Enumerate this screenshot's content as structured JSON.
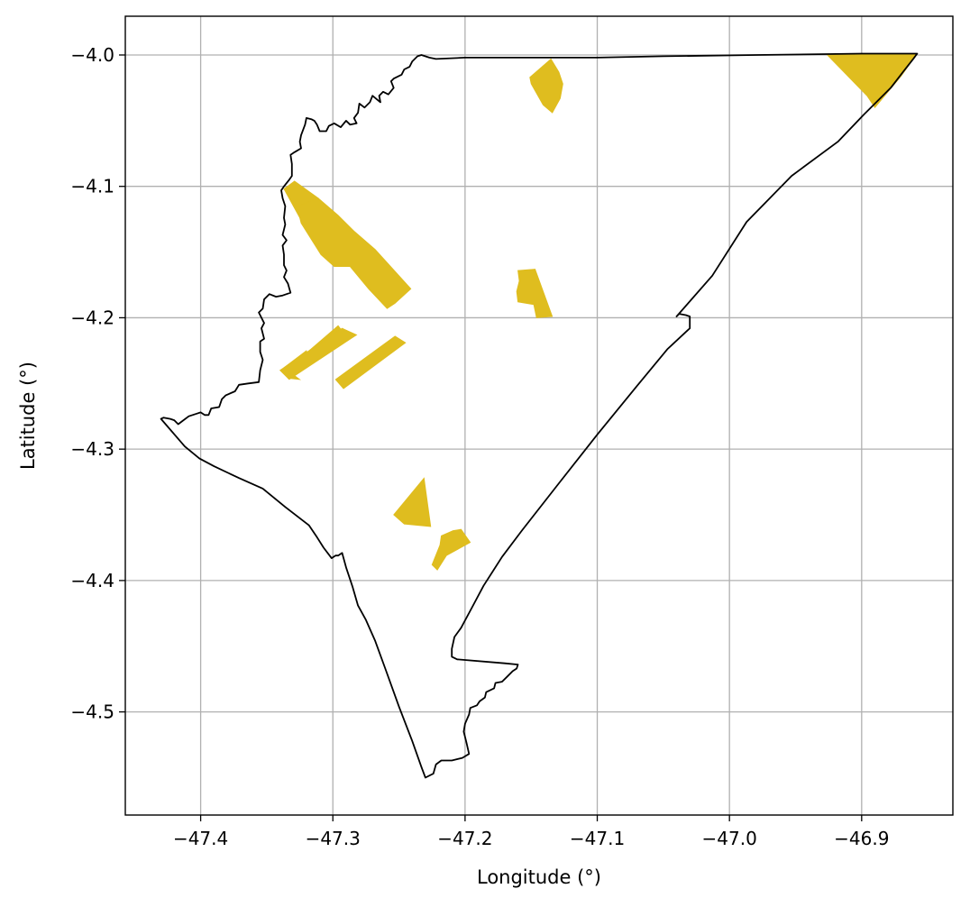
{
  "chart_data": {
    "type": "map",
    "xlabel": "Longitude (°)",
    "ylabel": "Latitude (°)",
    "xlim": [
      -47.457,
      -46.831
    ],
    "ylim": [
      -4.5785,
      -3.9705
    ],
    "grid": true,
    "xticks": [
      -47.4,
      -47.3,
      -47.2,
      -47.1,
      -47.0,
      -46.9
    ],
    "xtick_labels": [
      "−47.4",
      "−47.3",
      "−47.2",
      "−47.1",
      "−47.0",
      "−46.9"
    ],
    "yticks": [
      -4.0,
      -4.1,
      -4.2,
      -4.3,
      -4.4,
      -4.5
    ],
    "ytick_labels": [
      "−4.0",
      "−4.1",
      "−4.2",
      "−4.3",
      "−4.4",
      "−4.5"
    ],
    "boundary_color": "#000000",
    "patch_color": "#dfbd1f",
    "boundary": [
      [
        -47.227,
        -4.002
      ],
      [
        -47.233,
        -4.0
      ],
      [
        -47.236,
        -4.001
      ],
      [
        -47.24,
        -4.005
      ],
      [
        -47.242,
        -4.009
      ],
      [
        -47.246,
        -4.011
      ],
      [
        -47.248,
        -4.015
      ],
      [
        -47.254,
        -4.018
      ],
      [
        -47.256,
        -4.02
      ],
      [
        -47.254,
        -4.025
      ],
      [
        -47.258,
        -4.03
      ],
      [
        -47.262,
        -4.028
      ],
      [
        -47.265,
        -4.031
      ],
      [
        -47.264,
        -4.036
      ],
      [
        -47.27,
        -4.031
      ],
      [
        -47.272,
        -4.036
      ],
      [
        -47.276,
        -4.04
      ],
      [
        -47.28,
        -4.037
      ],
      [
        -47.281,
        -4.044
      ],
      [
        -47.284,
        -4.048
      ],
      [
        -47.282,
        -4.052
      ],
      [
        -47.287,
        -4.053
      ],
      [
        -47.29,
        -4.05
      ],
      [
        -47.294,
        -4.055
      ],
      [
        -47.299,
        -4.052
      ],
      [
        -47.303,
        -4.054
      ],
      [
        -47.305,
        -4.058
      ],
      [
        -47.31,
        -4.058
      ],
      [
        -47.312,
        -4.053
      ],
      [
        -47.314,
        -4.05
      ],
      [
        -47.316,
        -4.049
      ],
      [
        -47.32,
        -4.048
      ],
      [
        -47.321,
        -4.053
      ],
      [
        -47.324,
        -4.061
      ],
      [
        -47.325,
        -4.066
      ],
      [
        -47.324,
        -4.071
      ],
      [
        -47.329,
        -4.074
      ],
      [
        -47.332,
        -4.076
      ],
      [
        -47.331,
        -4.083
      ],
      [
        -47.331,
        -4.092
      ],
      [
        -47.333,
        -4.095
      ],
      [
        -47.337,
        -4.1
      ],
      [
        -47.339,
        -4.103
      ],
      [
        -47.338,
        -4.109
      ],
      [
        -47.336,
        -4.115
      ],
      [
        -47.337,
        -4.124
      ],
      [
        -47.336,
        -4.129
      ],
      [
        -47.338,
        -4.137
      ],
      [
        -47.335,
        -4.141
      ],
      [
        -47.338,
        -4.145
      ],
      [
        -47.337,
        -4.152
      ],
      [
        -47.337,
        -4.16
      ],
      [
        -47.335,
        -4.164
      ],
      [
        -47.337,
        -4.169
      ],
      [
        -47.334,
        -4.174
      ],
      [
        -47.332,
        -4.181
      ],
      [
        -47.338,
        -4.183
      ],
      [
        -47.343,
        -4.184
      ],
      [
        -47.348,
        -4.182
      ],
      [
        -47.352,
        -4.186
      ],
      [
        -47.353,
        -4.193
      ],
      [
        -47.356,
        -4.196
      ],
      [
        -47.352,
        -4.204
      ],
      [
        -47.354,
        -4.208
      ],
      [
        -47.352,
        -4.216
      ],
      [
        -47.355,
        -4.218
      ],
      [
        -47.355,
        -4.226
      ],
      [
        -47.353,
        -4.232
      ],
      [
        -47.355,
        -4.24
      ],
      [
        -47.356,
        -4.249
      ],
      [
        -47.364,
        -4.25
      ],
      [
        -47.371,
        -4.251
      ],
      [
        -47.374,
        -4.256
      ],
      [
        -47.381,
        -4.259
      ],
      [
        -47.384,
        -4.262
      ],
      [
        -47.386,
        -4.268
      ],
      [
        -47.392,
        -4.269
      ],
      [
        -47.394,
        -4.274
      ],
      [
        -47.397,
        -4.274
      ],
      [
        -47.4,
        -4.272
      ],
      [
        -47.403,
        -4.273
      ],
      [
        -47.409,
        -4.275
      ],
      [
        -47.413,
        -4.278
      ],
      [
        -47.417,
        -4.281
      ],
      [
        -47.42,
        -4.278
      ],
      [
        -47.423,
        -4.277
      ],
      [
        -47.428,
        -4.276
      ],
      [
        -47.43,
        -4.277
      ],
      [
        -47.412,
        -4.298
      ],
      [
        -47.401,
        -4.307
      ],
      [
        -47.39,
        -4.313
      ],
      [
        -47.371,
        -4.322
      ],
      [
        -47.353,
        -4.33
      ],
      [
        -47.336,
        -4.344
      ],
      [
        -47.318,
        -4.358
      ],
      [
        -47.312,
        -4.367
      ],
      [
        -47.307,
        -4.375
      ],
      [
        -47.301,
        -4.383
      ],
      [
        -47.298,
        -4.381
      ],
      [
        -47.296,
        -4.381
      ],
      [
        -47.293,
        -4.379
      ],
      [
        -47.29,
        -4.39
      ],
      [
        -47.285,
        -4.405
      ],
      [
        -47.281,
        -4.419
      ],
      [
        -47.275,
        -4.43
      ],
      [
        -47.268,
        -4.446
      ],
      [
        -47.26,
        -4.468
      ],
      [
        -47.25,
        -4.496
      ],
      [
        -47.24,
        -4.522
      ],
      [
        -47.233,
        -4.542
      ],
      [
        -47.23,
        -4.55
      ],
      [
        -47.224,
        -4.547
      ],
      [
        -47.222,
        -4.54
      ],
      [
        -47.218,
        -4.537
      ],
      [
        -47.21,
        -4.537
      ],
      [
        -47.202,
        -4.535
      ],
      [
        -47.197,
        -4.532
      ],
      [
        -47.199,
        -4.523
      ],
      [
        -47.201,
        -4.515
      ],
      [
        -47.2,
        -4.509
      ],
      [
        -47.197,
        -4.502
      ],
      [
        -47.196,
        -4.497
      ],
      [
        -47.191,
        -4.495
      ],
      [
        -47.189,
        -4.492
      ],
      [
        -47.185,
        -4.489
      ],
      [
        -47.184,
        -4.485
      ],
      [
        -47.178,
        -4.482
      ],
      [
        -47.177,
        -4.478
      ],
      [
        -47.172,
        -4.477
      ],
      [
        -47.168,
        -4.473
      ],
      [
        -47.164,
        -4.469
      ],
      [
        -47.161,
        -4.467
      ],
      [
        -47.16,
        -4.464
      ],
      [
        -47.17,
        -4.463
      ],
      [
        -47.206,
        -4.46
      ],
      [
        -47.21,
        -4.458
      ],
      [
        -47.21,
        -4.452
      ],
      [
        -47.208,
        -4.443
      ],
      [
        -47.203,
        -4.436
      ],
      [
        -47.195,
        -4.421
      ],
      [
        -47.186,
        -4.404
      ],
      [
        -47.172,
        -4.382
      ],
      [
        -47.157,
        -4.362
      ],
      [
        -47.129,
        -4.326
      ],
      [
        -47.1,
        -4.289
      ],
      [
        -47.07,
        -4.252
      ],
      [
        -47.047,
        -4.224
      ],
      [
        -47.03,
        -4.208
      ],
      [
        -47.03,
        -4.199
      ],
      [
        -47.033,
        -4.198
      ],
      [
        -47.038,
        -4.197
      ],
      [
        -47.04,
        -4.199
      ],
      [
        -47.013,
        -4.168
      ],
      [
        -46.987,
        -4.127
      ],
      [
        -46.953,
        -4.092
      ],
      [
        -46.918,
        -4.066
      ],
      [
        -46.898,
        -4.045
      ],
      [
        -46.878,
        -4.025
      ],
      [
        -46.868,
        -4.012
      ],
      [
        -46.861,
        -4.003
      ],
      [
        -46.858,
        -3.999
      ],
      [
        -46.9,
        -3.999
      ],
      [
        -46.98,
        -4.0
      ],
      [
        -47.05,
        -4.001
      ],
      [
        -47.1,
        -4.002
      ],
      [
        -47.15,
        -4.002
      ],
      [
        -47.2,
        -4.002
      ],
      [
        -47.222,
        -4.003
      ],
      [
        -47.227,
        -4.002
      ]
    ],
    "patches": [
      [
        [
          -47.337,
          -4.102
        ],
        [
          -47.329,
          -4.096
        ],
        [
          -47.311,
          -4.109
        ],
        [
          -47.325,
          -4.124
        ]
      ],
      [
        [
          -47.324,
          -4.114
        ],
        [
          -47.311,
          -4.109
        ],
        [
          -47.296,
          -4.122
        ],
        [
          -47.284,
          -4.134
        ],
        [
          -47.268,
          -4.148
        ],
        [
          -47.241,
          -4.178
        ],
        [
          -47.253,
          -4.189
        ],
        [
          -47.259,
          -4.193
        ],
        [
          -47.273,
          -4.178
        ],
        [
          -47.287,
          -4.161
        ],
        [
          -47.299,
          -4.161
        ],
        [
          -47.309,
          -4.152
        ],
        [
          -47.324,
          -4.128
        ],
        [
          -47.326,
          -4.12
        ]
      ],
      [
        [
          -47.16,
          -4.164
        ],
        [
          -47.147,
          -4.163
        ],
        [
          -47.134,
          -4.199
        ],
        [
          -47.146,
          -4.2
        ],
        [
          -47.148,
          -4.19
        ],
        [
          -47.16,
          -4.188
        ],
        [
          -47.161,
          -4.18
        ],
        [
          -47.159,
          -4.172
        ]
      ],
      [
        [
          -47.231,
          -4.322
        ],
        [
          -47.226,
          -4.359
        ],
        [
          -47.246,
          -4.357
        ],
        [
          -47.254,
          -4.35
        ]
      ],
      [
        [
          -47.209,
          -4.362
        ],
        [
          -47.218,
          -4.366
        ],
        [
          -47.219,
          -4.373
        ],
        [
          -47.225,
          -4.388
        ],
        [
          -47.221,
          -4.392
        ],
        [
          -47.214,
          -4.381
        ],
        [
          -47.196,
          -4.371
        ],
        [
          -47.203,
          -4.361
        ]
      ],
      [
        [
          -47.296,
          -4.206
        ],
        [
          -47.29,
          -4.214
        ],
        [
          -47.333,
          -4.24
        ],
        [
          -47.334,
          -4.246
        ],
        [
          -47.325,
          -4.247
        ],
        [
          -47.337,
          -4.238
        ],
        [
          -47.32,
          -4.225
        ],
        [
          -47.318,
          -4.233
        ],
        [
          -47.326,
          -4.232
        ]
      ],
      [
        [
          -47.293,
          -4.208
        ],
        [
          -47.282,
          -4.213
        ],
        [
          -47.333,
          -4.247
        ],
        [
          -47.34,
          -4.24
        ]
      ],
      [
        [
          -47.253,
          -4.214
        ],
        [
          -47.245,
          -4.219
        ],
        [
          -47.292,
          -4.254
        ],
        [
          -47.298,
          -4.247
        ]
      ],
      [
        [
          -47.135,
          -4.003
        ],
        [
          -47.129,
          -4.013
        ],
        [
          -47.126,
          -4.022
        ],
        [
          -47.128,
          -4.033
        ],
        [
          -47.134,
          -4.044
        ],
        [
          -47.141,
          -4.038
        ],
        [
          -47.15,
          -4.022
        ],
        [
          -47.151,
          -4.017
        ]
      ],
      [
        [
          -46.926,
          -4.0
        ],
        [
          -46.858,
          -3.999
        ],
        [
          -46.87,
          -4.016
        ],
        [
          -46.89,
          -4.04
        ],
        [
          -46.896,
          -4.031
        ]
      ]
    ]
  }
}
